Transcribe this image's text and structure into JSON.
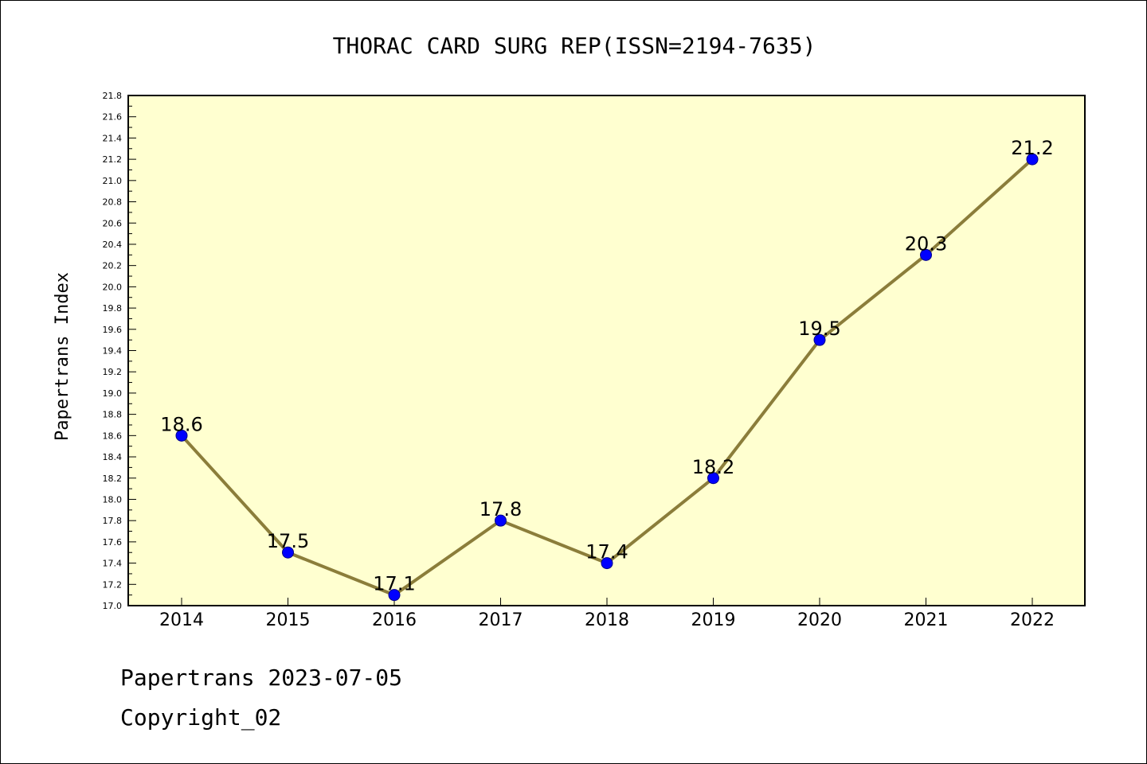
{
  "chart_data": {
    "type": "line",
    "title": "THORAC CARD SURG REP(ISSN=2194-7635)",
    "ylabel": "Papertrans Index",
    "xlabel": "",
    "categories": [
      "2014",
      "2015",
      "2016",
      "2017",
      "2018",
      "2019",
      "2020",
      "2021",
      "2022"
    ],
    "series": [
      {
        "values": [
          18.6,
          17.5,
          17.1,
          17.8,
          17.4,
          18.2,
          19.5,
          20.3,
          21.2
        ],
        "data_labels": [
          "18.6",
          "17.5",
          "17.1",
          "17.8",
          "17.4",
          "18.2",
          "19.5",
          "20.3",
          "21.2"
        ],
        "line_color": "#8b7d3a",
        "marker_color": "#0000ff"
      }
    ],
    "ylim": [
      17.0,
      21.8
    ],
    "yticks": [
      "17.0",
      "17.2",
      "17.4",
      "17.6",
      "17.8",
      "18.0",
      "18.2",
      "18.4",
      "18.6",
      "18.8",
      "19.0",
      "19.2",
      "19.4",
      "19.6",
      "19.8",
      "20.0",
      "20.2",
      "20.4",
      "20.6",
      "20.8",
      "21.0",
      "21.2",
      "21.4",
      "21.6",
      "21.8"
    ],
    "plot_background": "#ffffd0",
    "grid": false,
    "legend": "none"
  },
  "footer": {
    "line1": "Papertrans 2023-07-05",
    "line2": "Copyright_02"
  }
}
